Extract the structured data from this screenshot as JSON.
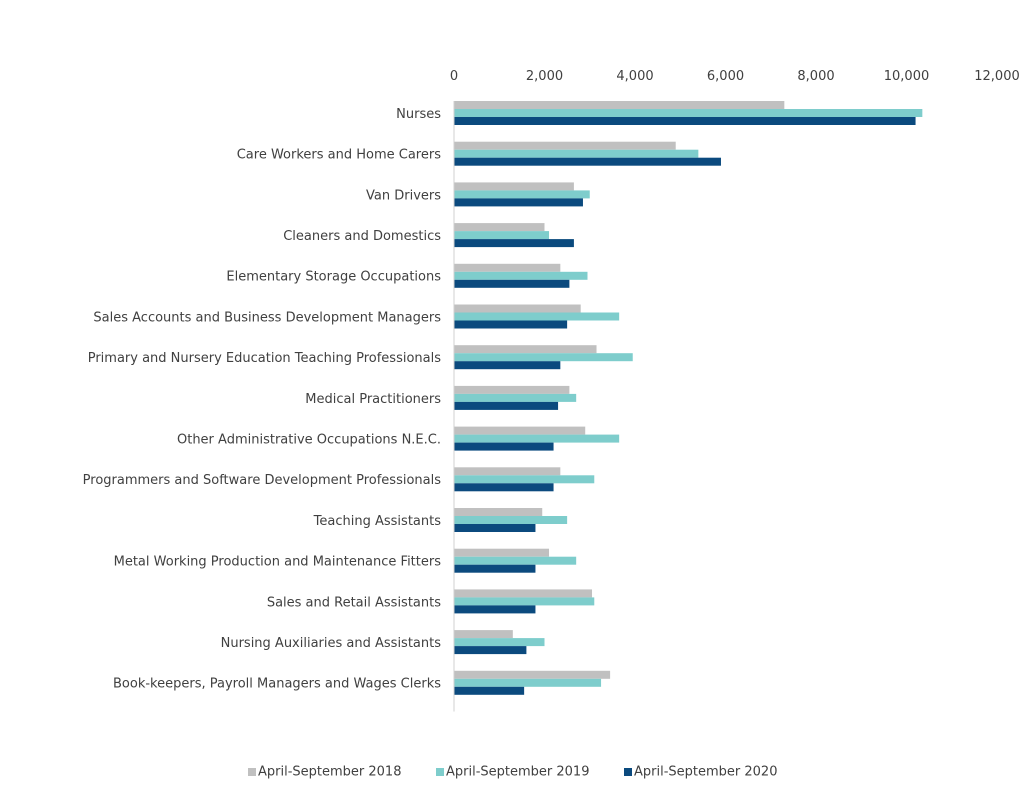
{
  "chart_data": {
    "type": "bar",
    "orientation": "horizontal",
    "title": "",
    "xlabel": "",
    "ylabel": "",
    "xlim": [
      0,
      12000
    ],
    "x_ticks": [
      "0",
      "2,000",
      "4,000",
      "6,000",
      "8,000",
      "10,000",
      "12,000"
    ],
    "axis_position": "top",
    "grid": false,
    "legend": "bottom",
    "categories": [
      "Nurses",
      "Care Workers and Home Carers",
      "Van Drivers",
      "Cleaners and Domestics",
      "Elementary Storage Occupations",
      "Sales Accounts and Business Development Managers",
      "Primary and Nursery Education Teaching Professionals",
      "Medical Practitioners",
      "Other Administrative Occupations N.E.C.",
      "Programmers and Software Development Professionals",
      "Teaching Assistants",
      "Metal Working Production and Maintenance Fitters",
      "Sales and Retail Assistants",
      "Nursing Auxiliaries and Assistants",
      "Book-keepers, Payroll Managers and Wages Clerks"
    ],
    "series": [
      {
        "name": "April-September 2018",
        "color": "#c0c0c0",
        "values": [
          7300,
          4900,
          2650,
          2000,
          2350,
          2800,
          3150,
          2550,
          2900,
          2350,
          1950,
          2100,
          3050,
          1300,
          3450
        ]
      },
      {
        "name": "April-September 2019",
        "color": "#7ecdcc",
        "values": [
          10350,
          5400,
          3000,
          2100,
          2950,
          3650,
          3950,
          2700,
          3650,
          3100,
          2500,
          2700,
          3100,
          2000,
          3250
        ]
      },
      {
        "name": "April-September 2020",
        "color": "#0b4a7e",
        "values": [
          10200,
          5900,
          2850,
          2650,
          2550,
          2500,
          2350,
          2300,
          2200,
          2200,
          1800,
          1800,
          1800,
          1600,
          1550
        ]
      }
    ]
  }
}
